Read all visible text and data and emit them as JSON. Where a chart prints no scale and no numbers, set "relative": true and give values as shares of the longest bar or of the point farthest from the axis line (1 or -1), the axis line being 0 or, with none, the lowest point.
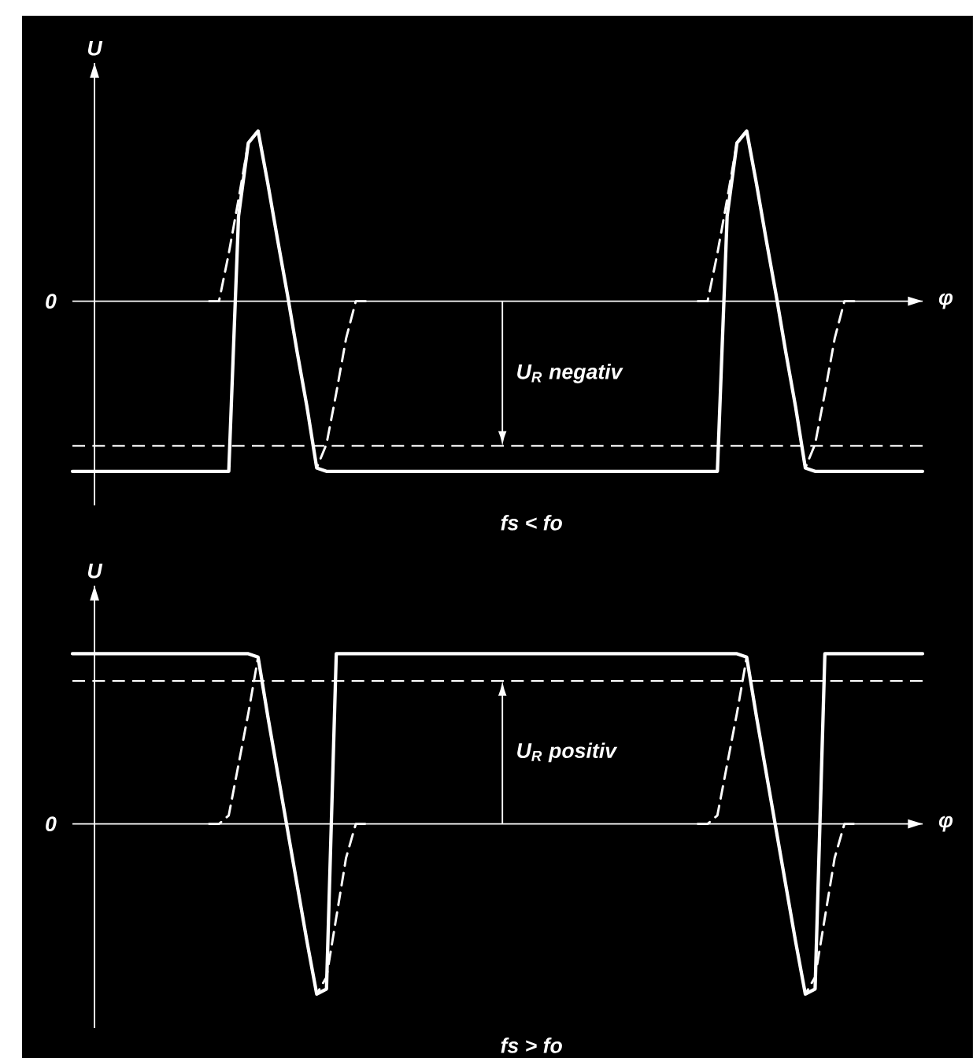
{
  "chart_data": [
    {
      "type": "line",
      "relative": true,
      "xlabel": "φ",
      "ylabel": "U",
      "categories": [
        null,
        null,
        null,
        null,
        null,
        null,
        null,
        null,
        null,
        null,
        null,
        null,
        null,
        null,
        null,
        null,
        null,
        null,
        null,
        null,
        null,
        null,
        null,
        null,
        null,
        null,
        null,
        null,
        null,
        null,
        null,
        null,
        null,
        null,
        null,
        null,
        null,
        null,
        null,
        null,
        null,
        null,
        null,
        null,
        null,
        null,
        null,
        null,
        null,
        null,
        null,
        null,
        null,
        null,
        null,
        null,
        null,
        null,
        null,
        null,
        null,
        null,
        null,
        null,
        null,
        null,
        null,
        null,
        null,
        null,
        null,
        null,
        null,
        null,
        null,
        null,
        null,
        null,
        null,
        null,
        null,
        null,
        null,
        null,
        null,
        null,
        null,
        null
      ],
      "series": [
        {
          "color": "#ffffff",
          "line_style": "solid",
          "values": [
            -1,
            -1,
            -1,
            -1,
            -1,
            -1,
            -1,
            -1,
            -1,
            -1,
            -1,
            -1,
            -1,
            -1,
            -1,
            -1,
            -1,
            0.5,
            0.93,
            1,
            0.69,
            0.36,
            0.04,
            -0.3,
            -0.62,
            -0.98,
            -1,
            -1,
            -1,
            -1,
            -1,
            -1,
            -1,
            -1,
            -1,
            -1,
            -1,
            -1,
            -1,
            -1,
            -1,
            -1,
            -1,
            -1,
            -1,
            -1,
            -1,
            -1,
            -1,
            -1,
            -1,
            -1,
            -1,
            -1,
            -1,
            -1,
            -1,
            -1,
            -1,
            -1,
            -1,
            -1,
            -1,
            -1,
            -1,
            -1,
            -1,
            0.5,
            0.93,
            1,
            0.69,
            0.36,
            0.04,
            -0.3,
            -0.62,
            -0.98,
            -1,
            -1,
            -1,
            -1,
            -1,
            -1,
            -1,
            -1,
            -1,
            -1,
            -1,
            -1
          ]
        },
        {
          "color": "#ffffff",
          "line_style": "dashed",
          "values": [
            null,
            null,
            null,
            null,
            null,
            null,
            null,
            null,
            null,
            null,
            null,
            null,
            null,
            null,
            0,
            0,
            0.28,
            0.6,
            0.93,
            1,
            0.69,
            0.36,
            0.04,
            -0.3,
            -0.62,
            -0.98,
            -0.84,
            -0.54,
            -0.22,
            0,
            0,
            null,
            null,
            null,
            null,
            null,
            null,
            null,
            null,
            null,
            null,
            null,
            null,
            null,
            null,
            null,
            null,
            null,
            null,
            null,
            null,
            null,
            null,
            null,
            null,
            null,
            null,
            null,
            null,
            null,
            null,
            null,
            null,
            null,
            0,
            0,
            0.28,
            0.6,
            0.93,
            1,
            0.69,
            0.36,
            0.04,
            -0.3,
            -0.62,
            -0.98,
            -0.84,
            -0.54,
            -0.22,
            0,
            0,
            null,
            null,
            null,
            null,
            null,
            null,
            null
          ]
        }
      ],
      "ref_lines": [
        {
          "axis": "y",
          "value": -0.85,
          "label": "U$_{R}$ negativ",
          "color": "#ffffff",
          "line_style": "dashed"
        }
      ],
      "annotations": [
        "0",
        "fs < fo"
      ]
    },
    {
      "type": "line",
      "relative": true,
      "xlabel": "φ",
      "ylabel": "U",
      "categories": [
        null,
        null,
        null,
        null,
        null,
        null,
        null,
        null,
        null,
        null,
        null,
        null,
        null,
        null,
        null,
        null,
        null,
        null,
        null,
        null,
        null,
        null,
        null,
        null,
        null,
        null,
        null,
        null,
        null,
        null,
        null,
        null,
        null,
        null,
        null,
        null,
        null,
        null,
        null,
        null,
        null,
        null,
        null,
        null,
        null,
        null,
        null,
        null,
        null,
        null,
        null,
        null,
        null,
        null,
        null,
        null,
        null,
        null,
        null,
        null,
        null,
        null,
        null,
        null,
        null,
        null,
        null,
        null,
        null,
        null,
        null,
        null,
        null,
        null,
        null,
        null,
        null,
        null,
        null,
        null,
        null,
        null,
        null,
        null,
        null,
        null,
        null,
        null
      ],
      "series": [
        {
          "color": "#ffffff",
          "line_style": "solid",
          "values": [
            1,
            1,
            1,
            1,
            1,
            1,
            1,
            1,
            1,
            1,
            1,
            1,
            1,
            1,
            1,
            1,
            1,
            1,
            1,
            0.98,
            0.63,
            0.3,
            -0.03,
            -0.36,
            -0.69,
            -1,
            -0.97,
            1,
            1,
            1,
            1,
            1,
            1,
            1,
            1,
            1,
            1,
            1,
            1,
            1,
            1,
            1,
            1,
            1,
            1,
            1,
            1,
            1,
            1,
            1,
            1,
            1,
            1,
            1,
            1,
            1,
            1,
            1,
            1,
            1,
            1,
            1,
            1,
            1,
            1,
            1,
            1,
            1,
            1,
            0.98,
            0.63,
            0.3,
            -0.03,
            -0.36,
            -0.69,
            -1,
            -0.97,
            1,
            1,
            1,
            1,
            1,
            1,
            1,
            1,
            1,
            1,
            1
          ]
        },
        {
          "color": "#ffffff",
          "line_style": "dashed",
          "values": [
            null,
            null,
            null,
            null,
            null,
            null,
            null,
            null,
            null,
            null,
            null,
            null,
            null,
            null,
            0,
            0,
            0.05,
            0.35,
            0.65,
            0.98,
            0.63,
            0.3,
            -0.03,
            -0.36,
            -0.69,
            -1,
            -0.9,
            -0.55,
            -0.2,
            0,
            0,
            null,
            null,
            null,
            null,
            null,
            null,
            null,
            null,
            null,
            null,
            null,
            null,
            null,
            null,
            null,
            null,
            null,
            null,
            null,
            null,
            null,
            null,
            null,
            null,
            null,
            null,
            null,
            null,
            null,
            null,
            null,
            null,
            null,
            0,
            0,
            0.05,
            0.35,
            0.65,
            0.98,
            0.63,
            0.3,
            -0.03,
            -0.36,
            -0.69,
            -1,
            -0.9,
            -0.55,
            -0.2,
            0,
            0,
            null,
            null,
            null,
            null,
            null,
            null,
            null
          ]
        }
      ],
      "ref_lines": [
        {
          "axis": "y",
          "value": 0.84,
          "label": "U$_{R}$ positiv",
          "color": "#ffffff",
          "line_style": "dashed"
        }
      ],
      "annotations": [
        "0",
        "fs > fo"
      ]
    }
  ]
}
